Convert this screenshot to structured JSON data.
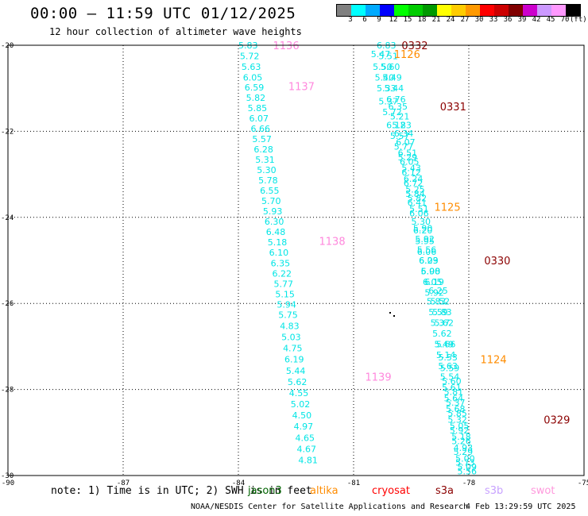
{
  "header": {
    "title": "00:00 – 11:59 UTC 01/12/2025",
    "subtitle": "12 hour collection of altimeter wave heights"
  },
  "legend": {
    "colors": [
      "#808080",
      "#00ffff",
      "#00aaff",
      "#0000ff",
      "#00ff00",
      "#00cc00",
      "#009900",
      "#ffff00",
      "#ffcc00",
      "#ff9900",
      "#ff0000",
      "#cc0000",
      "#800000",
      "#cc00cc",
      "#cc99ff",
      "#ff99ff",
      "#000000"
    ],
    "ticks": [
      "3",
      "6",
      "9",
      "12",
      "15",
      "18",
      "21",
      "24",
      "27",
      "30",
      "33",
      "36",
      "39",
      "42",
      "45",
      "70"
    ],
    "unit": "(ft)"
  },
  "axes": {
    "x_ticks": [
      "-90",
      "-87",
      "-84",
      "-81",
      "-78",
      "-75"
    ],
    "y_ticks": [
      "-20",
      "-22",
      "-24",
      "-26",
      "-28",
      "-30"
    ]
  },
  "note": "note: 1) Time is in UTC; 2) SWH is in feet",
  "satellites": [
    {
      "name": "jason3",
      "color": "#006400"
    },
    {
      "name": "altika",
      "color": "#ff8c00"
    },
    {
      "name": "cryosat",
      "color": "#ff0000"
    },
    {
      "name": "s3a",
      "color": "#8b0000"
    },
    {
      "name": "s3b",
      "color": "#c8a2ff"
    },
    {
      "name": "swot",
      "color": "#ff99dd"
    }
  ],
  "footer": {
    "credit": "NOAA/NESDIS Center for Satellite Applications and Research",
    "timestamp": "4 Feb 13:29:59 UTC 2025"
  },
  "tracks": [
    {
      "satellite": "swot",
      "value_color": "#00e5e5",
      "time_color": "#ff88dd",
      "times": [
        {
          "label": "1136",
          "lon": -83.1,
          "lat": -20.0
        },
        {
          "label": "1137",
          "lon": -82.7,
          "lat": -20.95
        },
        {
          "label": "1138",
          "lon": -81.9,
          "lat": -24.55
        },
        {
          "label": "1139",
          "lon": -80.7,
          "lat": -27.7
        }
      ],
      "points": [
        {
          "lon": -84.0,
          "lat": -20.0,
          "v": "5.83"
        },
        {
          "lon": -83.96,
          "lat": -20.25,
          "v": "5.72"
        },
        {
          "lon": -83.92,
          "lat": -20.5,
          "v": "5.63"
        },
        {
          "lon": -83.88,
          "lat": -20.75,
          "v": "6.05"
        },
        {
          "lon": -83.84,
          "lat": -20.98,
          "v": "6.59"
        },
        {
          "lon": -83.8,
          "lat": -21.22,
          "v": "5.82"
        },
        {
          "lon": -83.76,
          "lat": -21.46,
          "v": "5.85"
        },
        {
          "lon": -83.72,
          "lat": -21.7,
          "v": "6.07"
        },
        {
          "lon": -83.68,
          "lat": -21.94,
          "v": "6.66"
        },
        {
          "lon": -83.64,
          "lat": -22.18,
          "v": "5.57"
        },
        {
          "lon": -83.6,
          "lat": -22.42,
          "v": "6.28"
        },
        {
          "lon": -83.56,
          "lat": -22.66,
          "v": "5.31"
        },
        {
          "lon": -83.52,
          "lat": -22.9,
          "v": "5.30"
        },
        {
          "lon": -83.48,
          "lat": -23.14,
          "v": "5.78"
        },
        {
          "lon": -83.44,
          "lat": -23.38,
          "v": "6.55"
        },
        {
          "lon": -83.4,
          "lat": -23.62,
          "v": "5.70"
        },
        {
          "lon": -83.36,
          "lat": -23.86,
          "v": "5.93"
        },
        {
          "lon": -83.32,
          "lat": -24.1,
          "v": "6.30"
        },
        {
          "lon": -83.28,
          "lat": -24.34,
          "v": "6.48"
        },
        {
          "lon": -83.24,
          "lat": -24.58,
          "v": "5.18"
        },
        {
          "lon": -83.2,
          "lat": -24.82,
          "v": "6.10"
        },
        {
          "lon": -83.16,
          "lat": -25.06,
          "v": "6.35"
        },
        {
          "lon": -83.12,
          "lat": -25.3,
          "v": "6.22"
        },
        {
          "lon": -83.08,
          "lat": -25.54,
          "v": "5.77"
        },
        {
          "lon": -83.04,
          "lat": -25.78,
          "v": "5.15"
        },
        {
          "lon": -83.0,
          "lat": -26.02,
          "v": "5.94"
        },
        {
          "lon": -82.96,
          "lat": -26.26,
          "v": "5.75"
        },
        {
          "lon": -82.92,
          "lat": -26.52,
          "v": "4.83"
        },
        {
          "lon": -82.88,
          "lat": -26.78,
          "v": "5.03"
        },
        {
          "lon": -82.84,
          "lat": -27.04,
          "v": "4.75"
        },
        {
          "lon": -82.8,
          "lat": -27.3,
          "v": "6.19"
        },
        {
          "lon": -82.76,
          "lat": -27.56,
          "v": "5.44"
        },
        {
          "lon": -82.72,
          "lat": -27.82,
          "v": "5.62"
        },
        {
          "lon": -82.68,
          "lat": -28.08,
          "v": "4.55"
        },
        {
          "lon": -82.64,
          "lat": -28.34,
          "v": "5.02"
        },
        {
          "lon": -82.6,
          "lat": -28.6,
          "v": "4.50"
        },
        {
          "lon": -82.56,
          "lat": -28.86,
          "v": "4.97"
        },
        {
          "lon": -82.52,
          "lat": -29.12,
          "v": "4.65"
        },
        {
          "lon": -82.48,
          "lat": -29.38,
          "v": "4.67"
        },
        {
          "lon": -82.44,
          "lat": -29.64,
          "v": "4.81"
        }
      ]
    },
    {
      "satellite": "s3a",
      "value_color": "#00e5e5",
      "time_color": "#8b0000",
      "times": [
        {
          "label": "0332",
          "lon": -79.75,
          "lat": -20.0
        },
        {
          "label": "0331",
          "lon": -78.75,
          "lat": -21.42
        },
        {
          "label": "0330",
          "lon": -77.6,
          "lat": -25.0
        },
        {
          "label": "0329",
          "lon": -76.05,
          "lat": -28.7
        }
      ],
      "points": [
        {
          "lon": -80.4,
          "lat": -20.0,
          "v": "6.83"
        },
        {
          "lon": -80.35,
          "lat": -20.25,
          "v": "5.51"
        },
        {
          "lon": -80.3,
          "lat": -20.5,
          "v": "5.60"
        },
        {
          "lon": -80.25,
          "lat": -20.75,
          "v": "5.49"
        },
        {
          "lon": -80.2,
          "lat": -21.0,
          "v": "5.44"
        },
        {
          "lon": -80.15,
          "lat": -21.25,
          "v": "6.76"
        },
        {
          "lon": -80.1,
          "lat": -21.42,
          "v": "6.35"
        },
        {
          "lon": -80.05,
          "lat": -21.65,
          "v": "5.21"
        },
        {
          "lon": -80.0,
          "lat": -21.85,
          "v": "5.83"
        },
        {
          "lon": -79.95,
          "lat": -22.05,
          "v": "6.34"
        },
        {
          "lon": -79.9,
          "lat": -22.25,
          "v": "6.07"
        },
        {
          "lon": -79.85,
          "lat": -22.5,
          "v": "6.51"
        },
        {
          "lon": -79.8,
          "lat": -22.7,
          "v": "6.05"
        },
        {
          "lon": -79.75,
          "lat": -22.95,
          "v": "6.12"
        },
        {
          "lon": -79.7,
          "lat": -23.2,
          "v": "6.72"
        },
        {
          "lon": -79.65,
          "lat": -23.45,
          "v": "5.84"
        },
        {
          "lon": -79.6,
          "lat": -23.65,
          "v": "6.41"
        },
        {
          "lon": -79.55,
          "lat": -23.9,
          "v": "6.06"
        },
        {
          "lon": -79.5,
          "lat": -24.1,
          "v": "5.30"
        },
        {
          "lon": -79.45,
          "lat": -24.3,
          "v": "6.20"
        },
        {
          "lon": -79.4,
          "lat": -24.55,
          "v": "5.95"
        },
        {
          "lon": -79.35,
          "lat": -24.8,
          "v": "6.06"
        },
        {
          "lon": -79.3,
          "lat": -25.0,
          "v": "6.03"
        },
        {
          "lon": -79.25,
          "lat": -25.25,
          "v": "5.90"
        },
        {
          "lon": -79.2,
          "lat": -25.5,
          "v": "6.05"
        },
        {
          "lon": -79.15,
          "lat": -25.75,
          "v": "5.92"
        },
        {
          "lon": -79.1,
          "lat": -25.95,
          "v": "5.83"
        },
        {
          "lon": -79.05,
          "lat": -26.2,
          "v": "5.59"
        },
        {
          "lon": -79.0,
          "lat": -26.45,
          "v": "5.37"
        },
        {
          "lon": -78.95,
          "lat": -26.7,
          "v": "5.62"
        },
        {
          "lon": -78.9,
          "lat": -26.95,
          "v": "5.49"
        },
        {
          "lon": -78.85,
          "lat": -27.2,
          "v": "5.14"
        },
        {
          "lon": -78.8,
          "lat": -27.45,
          "v": "5.63"
        },
        {
          "lon": -78.75,
          "lat": -27.7,
          "v": "5.54"
        },
        {
          "lon": -78.7,
          "lat": -27.95,
          "v": "5.61"
        },
        {
          "lon": -78.65,
          "lat": -28.2,
          "v": "5.64"
        },
        {
          "lon": -78.6,
          "lat": -28.45,
          "v": "5.68"
        },
        {
          "lon": -78.55,
          "lat": -28.7,
          "v": "5.32"
        },
        {
          "lon": -78.5,
          "lat": -28.95,
          "v": "5.92"
        },
        {
          "lon": -78.45,
          "lat": -29.2,
          "v": "5.26"
        },
        {
          "lon": -78.4,
          "lat": -29.45,
          "v": "5.29"
        },
        {
          "lon": -78.35,
          "lat": -29.7,
          "v": "5.73"
        },
        {
          "lon": -78.3,
          "lat": -29.9,
          "v": "5.56"
        }
      ]
    },
    {
      "satellite": "altika",
      "value_color": "#00e5e5",
      "time_color": "#ff8c00",
      "times": [
        {
          "label": "1126",
          "lon": -79.95,
          "lat": -20.2
        },
        {
          "label": "1125",
          "lon": -78.9,
          "lat": -23.75
        },
        {
          "label": "1124",
          "lon": -77.7,
          "lat": -27.3
        }
      ],
      "points": [
        {
          "lon": -80.55,
          "lat": -20.2,
          "v": "5.47"
        },
        {
          "lon": -80.5,
          "lat": -20.5,
          "v": "5.50"
        },
        {
          "lon": -80.45,
          "lat": -20.75,
          "v": "5.40"
        },
        {
          "lon": -80.4,
          "lat": -21.0,
          "v": "5.33"
        },
        {
          "lon": -80.35,
          "lat": -21.3,
          "v": "5.37"
        },
        {
          "lon": -80.25,
          "lat": -21.55,
          "v": "5.72"
        },
        {
          "lon": -80.15,
          "lat": -21.85,
          "v": "6.12"
        },
        {
          "lon": -80.05,
          "lat": -22.1,
          "v": "5.57"
        },
        {
          "lon": -79.95,
          "lat": -22.35,
          "v": "5.77"
        },
        {
          "lon": -79.85,
          "lat": -22.6,
          "v": "5.29"
        },
        {
          "lon": -79.75,
          "lat": -22.85,
          "v": "5.43"
        },
        {
          "lon": -79.7,
          "lat": -23.1,
          "v": "6.24"
        },
        {
          "lon": -79.65,
          "lat": -23.35,
          "v": "5.25"
        },
        {
          "lon": -79.6,
          "lat": -23.55,
          "v": "5.82"
        },
        {
          "lon": -79.55,
          "lat": -23.8,
          "v": "5.51"
        },
        {
          "lon": -79.45,
          "lat": -24.25,
          "v": "5.90"
        },
        {
          "lon": -79.4,
          "lat": -24.5,
          "v": "5.92"
        },
        {
          "lon": -79.35,
          "lat": -24.75,
          "v": "5.56"
        },
        {
          "lon": -79.3,
          "lat": -25.0,
          "v": "6.29"
        },
        {
          "lon": -79.25,
          "lat": -25.25,
          "v": "6.08"
        },
        {
          "lon": -79.15,
          "lat": -25.5,
          "v": "6.19"
        },
        {
          "lon": -79.05,
          "lat": -25.7,
          "v": "6.25"
        },
        {
          "lon": -79.0,
          "lat": -25.95,
          "v": "5.52"
        },
        {
          "lon": -78.95,
          "lat": -26.2,
          "v": "5.83"
        },
        {
          "lon": -78.9,
          "lat": -26.45,
          "v": "5.62"
        },
        {
          "lon": -78.85,
          "lat": -26.95,
          "v": "5.66"
        },
        {
          "lon": -78.8,
          "lat": -27.25,
          "v": "5.53"
        },
        {
          "lon": -78.75,
          "lat": -27.5,
          "v": "5.59"
        },
        {
          "lon": -78.7,
          "lat": -27.8,
          "v": "5.60"
        },
        {
          "lon": -78.65,
          "lat": -28.05,
          "v": "5.81"
        },
        {
          "lon": -78.6,
          "lat": -28.3,
          "v": "5.37"
        },
        {
          "lon": -78.55,
          "lat": -28.55,
          "v": "5.85"
        },
        {
          "lon": -78.5,
          "lat": -28.85,
          "v": "5.05"
        },
        {
          "lon": -78.45,
          "lat": -29.1,
          "v": "5.18"
        },
        {
          "lon": -78.4,
          "lat": -29.35,
          "v": "4.93"
        },
        {
          "lon": -78.35,
          "lat": -29.6,
          "v": "5.00"
        },
        {
          "lon": -78.3,
          "lat": -29.8,
          "v": "5.09"
        }
      ]
    }
  ]
}
